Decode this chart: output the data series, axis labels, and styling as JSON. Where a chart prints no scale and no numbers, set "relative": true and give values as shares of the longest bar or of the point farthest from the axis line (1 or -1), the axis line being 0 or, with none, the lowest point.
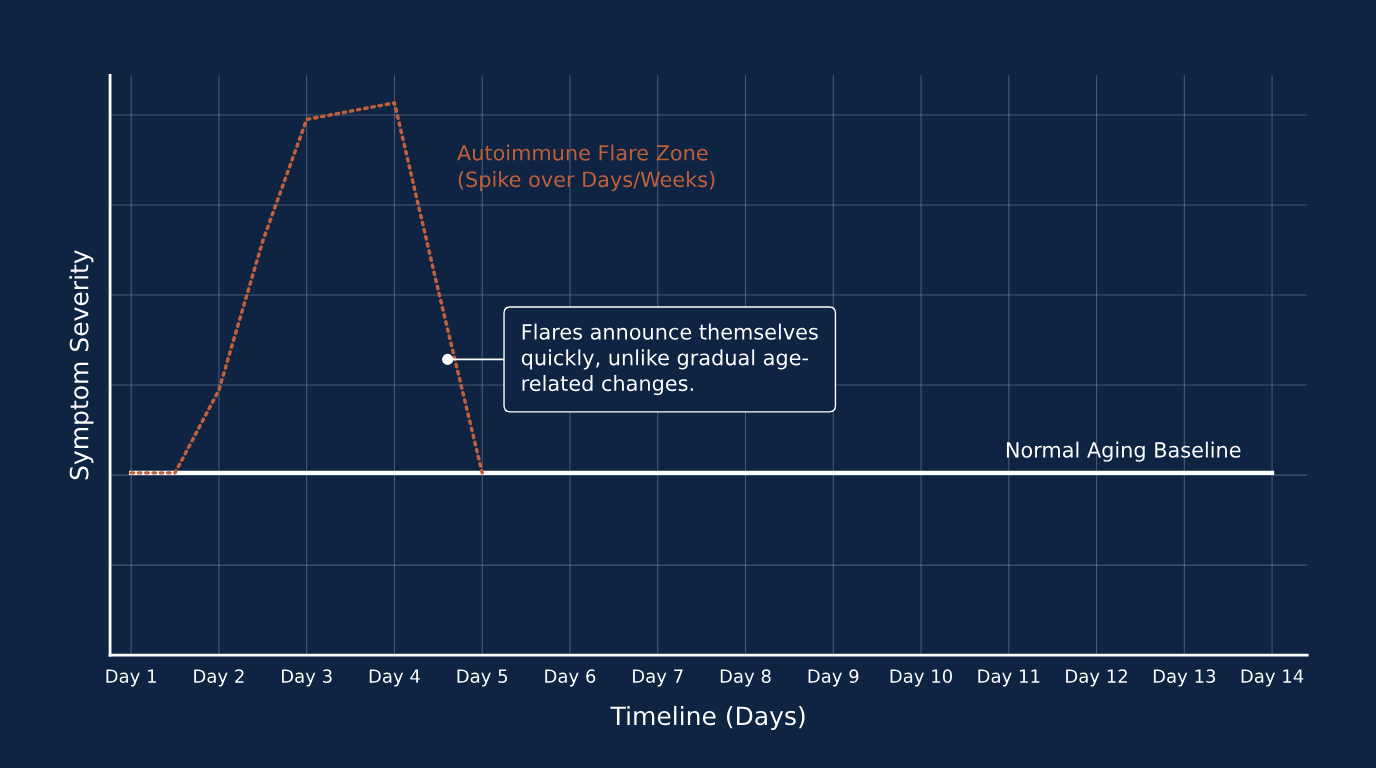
{
  "chart_data": {
    "type": "line",
    "relative": true,
    "xlabel": "Timeline (Days)",
    "ylabel": "Symptom Severity",
    "categories": [
      "Day 1",
      null,
      "Day 2",
      null,
      "Day 3",
      null,
      "Day 4",
      null,
      "Day 5",
      null,
      "Day 6",
      null,
      "Day 7",
      null,
      "Day 8",
      null,
      "Day 9",
      null,
      "Day 10",
      null,
      "Day 11",
      null,
      "Day 12",
      null,
      "Day 13",
      null,
      "Day 14"
    ],
    "series": [
      {
        "name": "Autoimmune Flare Zone\n(Spike over Days/Weeks)",
        "color": "#c0603a",
        "line_style": "dotted",
        "values": [
          0.33,
          0.33,
          0.48,
          0.75,
          0.97,
          0.985,
          1.0,
          0.66,
          0.33,
          null,
          null,
          null,
          null,
          null,
          null,
          null,
          null,
          null,
          null,
          null,
          null,
          null,
          null,
          null,
          null,
          null,
          null
        ]
      },
      {
        "name": "Normal Aging Baseline",
        "color": "#ffffff",
        "line_style": "solid",
        "values": [
          0.33,
          0.33,
          0.33,
          0.33,
          0.33,
          0.33,
          0.33,
          0.33,
          0.33,
          0.33,
          0.33,
          0.33,
          0.33,
          0.33,
          0.33,
          0.33,
          0.33,
          0.33,
          0.33,
          0.33,
          0.33,
          0.33,
          0.33,
          0.33,
          0.33,
          0.33,
          0.33
        ]
      }
    ],
    "annotations": [
      "Flares announce themselves\nquickly, unlike gradual age-\nrelated changes."
    ],
    "grid": true,
    "legend": false,
    "marker": "none"
  }
}
